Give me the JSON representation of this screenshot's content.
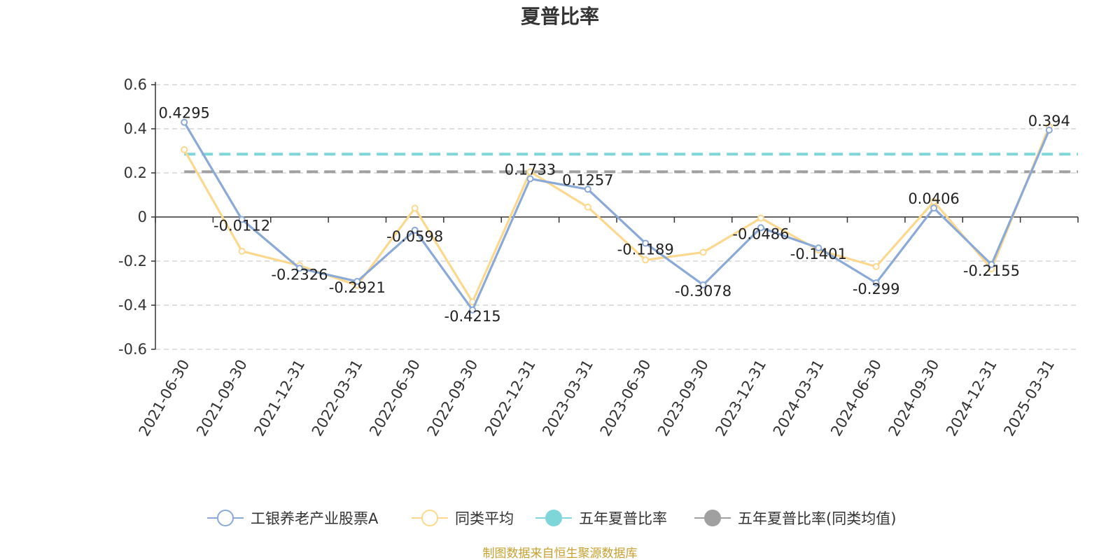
{
  "chart_data": {
    "type": "line",
    "title": "夏普比率",
    "categories": [
      "2021-06-30",
      "2021-09-30",
      "2021-12-31",
      "2022-03-31",
      "2022-06-30",
      "2022-09-30",
      "2022-12-31",
      "2023-03-31",
      "2023-06-30",
      "2023-09-30",
      "2023-12-31",
      "2024-03-31",
      "2024-06-30",
      "2024-09-30",
      "2024-12-31",
      "2025-03-31"
    ],
    "yticks": [
      "0.6",
      "0.4",
      "0.2",
      "0",
      "-0.2",
      "-0.4",
      "-0.6"
    ],
    "ylim": [
      -0.6,
      0.6
    ],
    "grid": true,
    "legend_position": "bottom",
    "series": [
      {
        "name": "工银养老产业股票A",
        "color": "#8aa9d6",
        "values": [
          0.4295,
          -0.0112,
          -0.2326,
          -0.2921,
          -0.0598,
          -0.4215,
          0.1733,
          0.1257,
          -0.1189,
          -0.3078,
          -0.0486,
          -0.1401,
          -0.299,
          0.0406,
          -0.2155,
          0.394
        ],
        "labels": [
          "0.4295",
          "-0.0112",
          "-0.2326",
          "-0.2921",
          "-0.0598",
          "-0.4215",
          "0.1733",
          "0.1257",
          "-0.1189",
          "-0.3078",
          "-0.0486",
          "-0.1401",
          "-0.299",
          "0.0406",
          "-0.2155",
          "0.394"
        ]
      },
      {
        "name": "同类平均",
        "color": "#fbd88e",
        "values": [
          0.305,
          -0.155,
          -0.22,
          -0.31,
          0.04,
          -0.385,
          0.205,
          0.045,
          -0.195,
          -0.16,
          -0.005,
          -0.15,
          -0.225,
          0.07,
          -0.235,
          0.41
        ]
      },
      {
        "name": "五年夏普比率",
        "color": "#7fd6d8",
        "value": 0.285
      },
      {
        "name": "五年夏普比率(同类均值)",
        "color": "#a0a0a0",
        "value": 0.205
      }
    ]
  },
  "source_text": "制图数据来自恒生聚源数据库"
}
